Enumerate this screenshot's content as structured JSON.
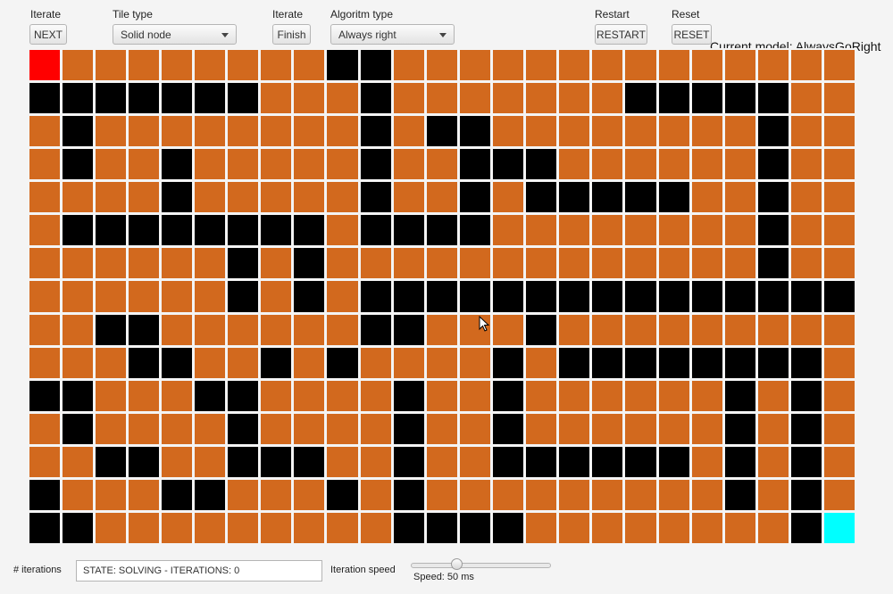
{
  "toolbar": {
    "iterate_label": "Iterate",
    "next_button": "NEXT",
    "tile_type_label": "Tile type",
    "tile_type_value": "Solid node",
    "iterate_label_2": "Iterate",
    "finish_button": "Finish",
    "algorithm_type_label": "Algoritm type",
    "algorithm_type_value": "Always right",
    "restart_label": "Restart",
    "restart_button": "RESTART",
    "reset_label": "Reset",
    "reset_button": "RESET",
    "current_model": "Current model: AlwaysGoRight"
  },
  "colors": {
    "open": "#d2691e",
    "solid": "#000000",
    "agent": "#ff0000",
    "goal": "#00ffff"
  },
  "grid": {
    "rows": [
      "AooooooooSSoooooooooooooo",
      "SSSSSSSoooSoooooooSSSSSoo",
      "oSooooooooSoSSooooooooSoo",
      "oSooSoooooSooSSSooooooSoo",
      "ooooSoooooSooSoSSSSSooSoo",
      "oSSSSSSSSoSSSSooooooooSoo",
      "ooooooSoSoooooooooooooSoo",
      "ooooooSoSoSSSSSSSSSSSSSSS",
      "ooSSooooooSSoooSooooooooo",
      "oooSSooSoSooooSoSSSSSSSSo",
      "SSoooSSooooSooSooooooSoSo",
      "oSooooSooooSooSooooooSoSo",
      "ooSSooSSSooSooSSSSSSoSoSo",
      "SoooSSoooSoSoooooooooSoSo",
      "SSoooooooooSSSSooooooooSG"
    ]
  },
  "footer": {
    "iterations_label": "# iterations",
    "state_text": "STATE: SOLVING - ITERATIONS: 0",
    "speed_label": "Iteration speed",
    "speed_value_text": "Speed: 50 ms",
    "speed_value_ms": 50
  }
}
